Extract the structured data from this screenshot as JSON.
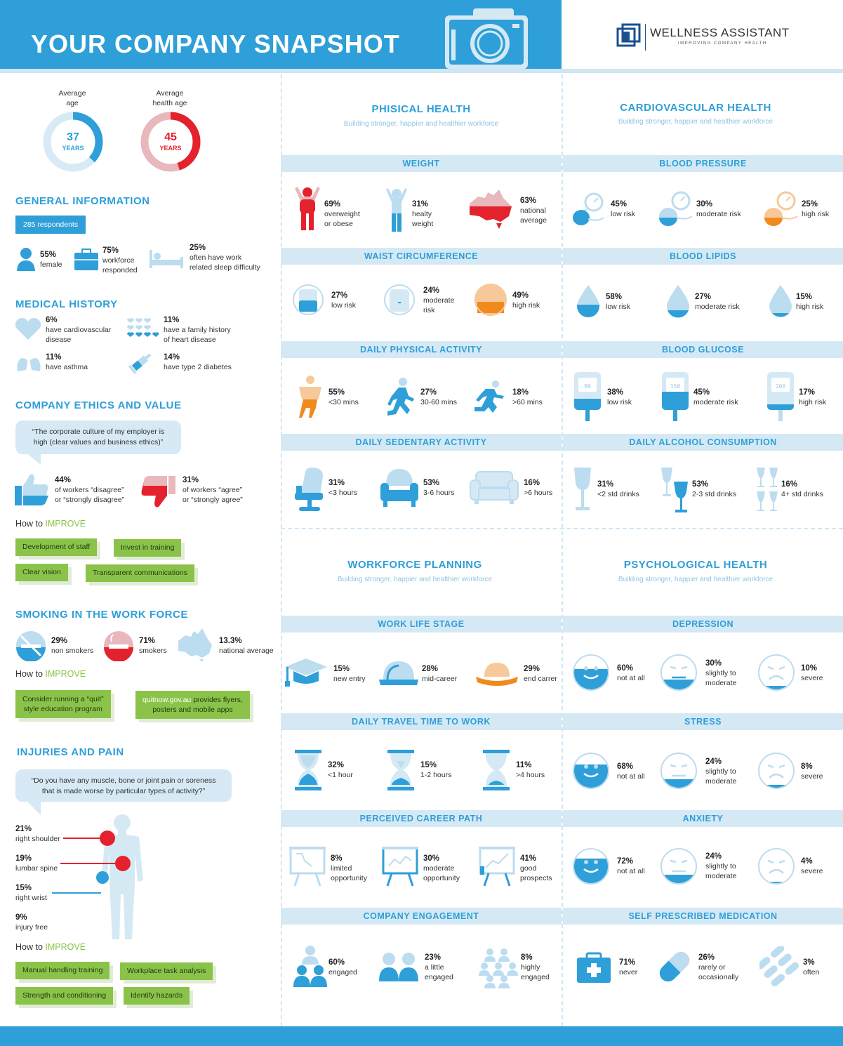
{
  "header": {
    "title": "YOUR COMPANY SNAPSHOT",
    "brand": "WELLNESS ASSISTANT",
    "brand_tagline": "IMPROVING COMPANY HEALTH"
  },
  "gauges": [
    {
      "label_line1": "Average",
      "label_line2": "age",
      "value": "37",
      "unit": "YEARS",
      "fill": 0.37,
      "color": "#2e9fd8",
      "track": "#d7eaf6"
    },
    {
      "label_line1": "Average",
      "label_line2": "health age",
      "value": "45",
      "unit": "YEARS",
      "fill": 0.45,
      "color": "#e4222e",
      "track": "#e8b8bd"
    }
  ],
  "general": {
    "title": "GENERAL INFORMATION",
    "respondents": "285 respondents",
    "items": [
      {
        "pct": "55%",
        "l1": "female",
        "l2": ""
      },
      {
        "pct": "75%",
        "l1": "workforce",
        "l2": "responded"
      },
      {
        "pct": "25%",
        "l1": "often have work",
        "l2": "related sleep difficulty"
      }
    ]
  },
  "medical": {
    "title": "MEDICAL HISTORY",
    "items": [
      {
        "pct": "6%",
        "l1": "have cardiovascular",
        "l2": "disease"
      },
      {
        "pct": "11%",
        "l1": "have a family history",
        "l2": "of heart disease"
      },
      {
        "pct": "11%",
        "l1": "have asthma",
        "l2": ""
      },
      {
        "pct": "14%",
        "l1": "have type 2 diabetes",
        "l2": ""
      }
    ]
  },
  "ethics": {
    "title": "COMPANY ETHICS AND VALUE",
    "quote_l1": "“The corporate culture of my employer is",
    "quote_l2": "high (clear values and business ethics)”",
    "disagree": {
      "pct": "44%",
      "l1": "of workers “disagree”",
      "l2": "or “strongly disagree”"
    },
    "agree": {
      "pct": "31%",
      "l1": "of workers “agree”",
      "l2": "or “strongly agree”"
    },
    "how_prefix": "How to ",
    "how_word": "IMPROVE",
    "tags": [
      "Development of staff",
      "Invest in training",
      "Clear vision",
      "Transparent communications"
    ]
  },
  "smoking": {
    "title": "SMOKING IN THE WORK FORCE",
    "items": [
      {
        "pct": "29%",
        "l1": "non smokers"
      },
      {
        "pct": "71%",
        "l1": "smokers"
      },
      {
        "pct": "13.3%",
        "l1": "national average"
      }
    ],
    "how_prefix": "How to ",
    "how_word": "IMPROVE",
    "tag1_l1": "Consider running a “quit”",
    "tag1_l2": "style education program",
    "tag2_link": "quitnow.gov.au",
    "tag2_l1": " provides flyers,",
    "tag2_l2": "posters and mobile apps"
  },
  "injuries": {
    "title": "INJURIES AND PAIN",
    "quote_l1": "“Do you have any muscle, bone or joint pain or soreness",
    "quote_l2": "that is made worse by particular types of activity?”",
    "items": [
      {
        "pct": "21%",
        "l1": "right shoulder"
      },
      {
        "pct": "19%",
        "l1": "lumbar spine"
      },
      {
        "pct": "15%",
        "l1": "right wrist"
      },
      {
        "pct": "9%",
        "l1": "injury free"
      }
    ],
    "how_prefix": "How to ",
    "how_word": "IMPROVE",
    "tags": [
      "Manual handling training",
      "Workplace task analysis",
      "Strength and conditioning",
      "Identify hazards"
    ]
  },
  "sections": [
    {
      "title": "PHISICAL HEALTH",
      "subtitle": "Building stronger, happier and healthier workforce"
    },
    {
      "title": "CARDIOVASCULAR HEALTH",
      "subtitle": "Building stronger, happier and healthier workforce"
    },
    {
      "title": "WORKFORCE PLANNING",
      "subtitle": "Building stronger, happier and healthier workforce"
    },
    {
      "title": "PSYCHOLOGICAL HEALTH",
      "subtitle": "Building stronger, happier and healthier workforce"
    }
  ],
  "bars": {
    "weight": "WEIGHT",
    "waist": "WAIST CIRCUMFERENCE",
    "activity": "DAILY PHYSICAL ACTIVITY",
    "sedentary": "DAILY SEDENTARY ACTIVITY",
    "bp": "BLOOD PRESSURE",
    "lipids": "BLOOD LIPIDS",
    "glucose": "BLOOD GLUCOSE",
    "alcohol": "DAILY ALCOHOL CONSUMPTION",
    "lifestage": "WORK LIFE STAGE",
    "travel": "DAILY TRAVEL TIME TO WORK",
    "career": "PERCEIVED CAREER PATH",
    "engage": "COMPANY ENGAGEMENT",
    "depression": "DEPRESSION",
    "stress": "STRESS",
    "anxiety": "ANXIETY",
    "meds": "SELF PRESCRIBED MEDICATION"
  },
  "stats": {
    "weight": [
      {
        "pct": "69%",
        "l1": "overweight",
        "l2": "or obese"
      },
      {
        "pct": "31%",
        "l1": "healty",
        "l2": "weight"
      },
      {
        "pct": "63%",
        "l1": "national",
        "l2": "average"
      }
    ],
    "waist": [
      {
        "pct": "27%",
        "l1": "low risk",
        "l2": ""
      },
      {
        "pct": "24%",
        "l1": "moderate",
        "l2": "risk"
      },
      {
        "pct": "49%",
        "l1": "high risk",
        "l2": ""
      }
    ],
    "activity": [
      {
        "pct": "55%",
        "l1": "<30 mins"
      },
      {
        "pct": "27%",
        "l1": "30-60 mins"
      },
      {
        "pct": "18%",
        "l1": ">60 mins"
      }
    ],
    "sedentary": [
      {
        "pct": "31%",
        "l1": "<3 hours"
      },
      {
        "pct": "53%",
        "l1": "3-6 hours"
      },
      {
        "pct": "16%",
        "l1": ">6 hours"
      }
    ],
    "bp": [
      {
        "pct": "45%",
        "l1": "low risk"
      },
      {
        "pct": "30%",
        "l1": "moderate risk"
      },
      {
        "pct": "25%",
        "l1": "high risk"
      }
    ],
    "lipids": [
      {
        "pct": "58%",
        "l1": "low risk"
      },
      {
        "pct": "27%",
        "l1": "moderate risk"
      },
      {
        "pct": "15%",
        "l1": "high risk"
      }
    ],
    "glucose": [
      {
        "pct": "38%",
        "l1": "low risk",
        "screen": "90"
      },
      {
        "pct": "45%",
        "l1": "moderate risk",
        "screen": "150"
      },
      {
        "pct": "17%",
        "l1": "high risk",
        "screen": "200"
      }
    ],
    "alcohol": [
      {
        "pct": "31%",
        "l1": "<2 std drinks"
      },
      {
        "pct": "53%",
        "l1": "2-3 std drinks"
      },
      {
        "pct": "16%",
        "l1": "4+ std drinks"
      }
    ],
    "lifestage": [
      {
        "pct": "15%",
        "l1": "new entry"
      },
      {
        "pct": "28%",
        "l1": "mid-career"
      },
      {
        "pct": "29%",
        "l1": "end carrer"
      }
    ],
    "travel": [
      {
        "pct": "32%",
        "l1": "<1 hour"
      },
      {
        "pct": "15%",
        "l1": "1-2 hours"
      },
      {
        "pct": "11%",
        "l1": ">4 hours"
      }
    ],
    "career": [
      {
        "pct": "8%",
        "l1": "limited",
        "l2": "opportunity"
      },
      {
        "pct": "30%",
        "l1": "moderate",
        "l2": "opportunity"
      },
      {
        "pct": "41%",
        "l1": "good",
        "l2": "prospects"
      }
    ],
    "engage": [
      {
        "pct": "60%",
        "l1": "engaged",
        "l2": ""
      },
      {
        "pct": "23%",
        "l1": "a little",
        "l2": "engaged"
      },
      {
        "pct": "8%",
        "l1": "highly",
        "l2": "engaged"
      }
    ],
    "depression": [
      {
        "pct": "60%",
        "l1": "not at all",
        "l2": "",
        "fill": 0.6
      },
      {
        "pct": "30%",
        "l1": "slightly to",
        "l2": "moderate",
        "fill": 0.3
      },
      {
        "pct": "10%",
        "l1": "severe",
        "l2": "",
        "fill": 0.1
      }
    ],
    "stress": [
      {
        "pct": "68%",
        "l1": "not at all",
        "l2": "",
        "fill": 0.68
      },
      {
        "pct": "24%",
        "l1": "slightly to",
        "l2": "moderate",
        "fill": 0.24
      },
      {
        "pct": "8%",
        "l1": "severe",
        "l2": "",
        "fill": 0.08
      }
    ],
    "anxiety": [
      {
        "pct": "72%",
        "l1": "not at all",
        "l2": "",
        "fill": 0.72
      },
      {
        "pct": "24%",
        "l1": "slightly to",
        "l2": "moderate",
        "fill": 0.24
      },
      {
        "pct": "4%",
        "l1": "severe",
        "l2": "",
        "fill": 0.04
      }
    ],
    "meds": [
      {
        "pct": "71%",
        "l1": "never",
        "l2": ""
      },
      {
        "pct": "26%",
        "l1": "rarely or",
        "l2": "occasionally"
      },
      {
        "pct": "3%",
        "l1": "often",
        "l2": ""
      }
    ]
  },
  "colors": {
    "blue": "#2e9fd8",
    "light": "#d5e9f5",
    "red": "#e4222e",
    "orange": "#f08a1c",
    "green": "#8bc34a"
  }
}
